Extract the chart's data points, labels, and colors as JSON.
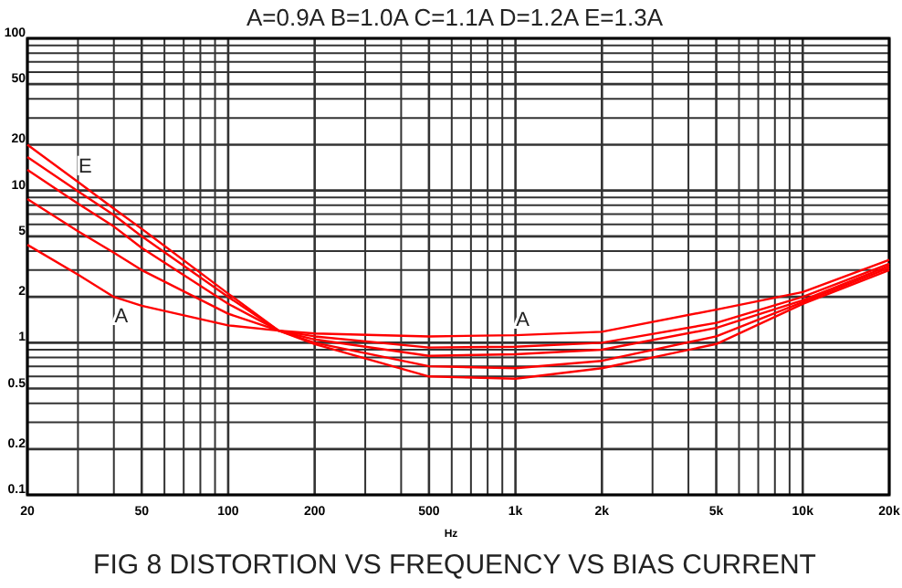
{
  "chart_data": {
    "type": "line",
    "title": "FIG 8  DISTORTION VS FREQUENCY VS BIAS CURRENT",
    "subtitle": "A=0.9A  B=1.0A  C=1.1A  D=1.2A  E=1.3A",
    "xlabel": "Hz",
    "log": "xy",
    "grid": true,
    "line_style": "solid",
    "x": [
      20,
      30,
      40,
      50,
      100,
      150,
      200,
      500,
      1000,
      2000,
      5000,
      10000,
      20000
    ],
    "xlim": [
      20,
      20000
    ],
    "ylim": [
      0.1,
      100
    ],
    "xticks": [
      20,
      {
        "value": 30,
        "label": null
      },
      {
        "value": 40,
        "label": null
      },
      50,
      {
        "value": 60,
        "label": null
      },
      {
        "value": 70,
        "label": null
      },
      {
        "value": 80,
        "label": null
      },
      {
        "value": 90,
        "label": null
      },
      100,
      200,
      {
        "value": 300,
        "label": null
      },
      {
        "value": 400,
        "label": null
      },
      500,
      {
        "value": 600,
        "label": null
      },
      {
        "value": 700,
        "label": null
      },
      {
        "value": 800,
        "label": null
      },
      {
        "value": 900,
        "label": null
      },
      {
        "value": 1000,
        "label": "1k"
      },
      {
        "value": 2000,
        "label": "2k"
      },
      {
        "value": 3000,
        "label": null
      },
      {
        "value": 4000,
        "label": null
      },
      {
        "value": 5000,
        "label": "5k"
      },
      {
        "value": 6000,
        "label": null
      },
      {
        "value": 7000,
        "label": null
      },
      {
        "value": 8000,
        "label": null
      },
      {
        "value": 9000,
        "label": null
      },
      {
        "value": 10000,
        "label": "10k"
      },
      {
        "value": 20000,
        "label": "20k"
      }
    ],
    "yticks": [
      0.1,
      0.2,
      {
        "value": 0.3,
        "label": null
      },
      {
        "value": 0.4,
        "label": null
      },
      0.5,
      {
        "value": 0.6,
        "label": null
      },
      {
        "value": 0.7,
        "label": null
      },
      {
        "value": 0.8,
        "label": null
      },
      {
        "value": 0.9,
        "label": null
      },
      1,
      2,
      {
        "value": 3,
        "label": null
      },
      {
        "value": 4,
        "label": null
      },
      5,
      {
        "value": 6,
        "label": null
      },
      {
        "value": 7,
        "label": null
      },
      {
        "value": 8,
        "label": null
      },
      {
        "value": 9,
        "label": null
      },
      10,
      20,
      {
        "value": 30,
        "label": null
      },
      {
        "value": 40,
        "label": null
      },
      50,
      {
        "value": 60,
        "label": null
      },
      {
        "value": 70,
        "label": null
      },
      {
        "value": 80,
        "label": null
      },
      {
        "value": 90,
        "label": null
      },
      100
    ],
    "series": [
      {
        "color": "#ff0000",
        "values": [
          4.4,
          2.8,
          2.0,
          1.75,
          1.3,
          1.2,
          1.15,
          1.1,
          1.12,
          1.18,
          1.65,
          2.15,
          3.5
        ]
      },
      {
        "color": "#ff0000",
        "values": [
          8.8,
          5.4,
          3.9,
          3.0,
          1.55,
          1.2,
          1.1,
          0.93,
          0.94,
          1.0,
          1.35,
          2.0,
          3.3
        ]
      },
      {
        "color": "#ff0000",
        "values": [
          13.7,
          8.2,
          5.8,
          4.2,
          1.8,
          1.2,
          1.05,
          0.82,
          0.84,
          0.9,
          1.25,
          1.9,
          3.2
        ]
      },
      {
        "color": "#ff0000",
        "values": [
          16.6,
          9.9,
          6.9,
          5.0,
          2.0,
          1.2,
          1.0,
          0.7,
          0.68,
          0.76,
          1.1,
          1.85,
          3.1
        ]
      },
      {
        "color": "#ff0000",
        "values": [
          20,
          11.4,
          7.6,
          5.6,
          2.1,
          1.2,
          0.98,
          0.6,
          0.58,
          0.68,
          0.98,
          1.8,
          3.0
        ]
      }
    ],
    "annotations": [
      {
        "text": "E",
        "x": 30,
        "y": 11.4
      },
      {
        "text": "A",
        "x": 40,
        "y": 2.0
      },
      {
        "text": "A",
        "x": 1000,
        "y": 1.12
      }
    ]
  }
}
